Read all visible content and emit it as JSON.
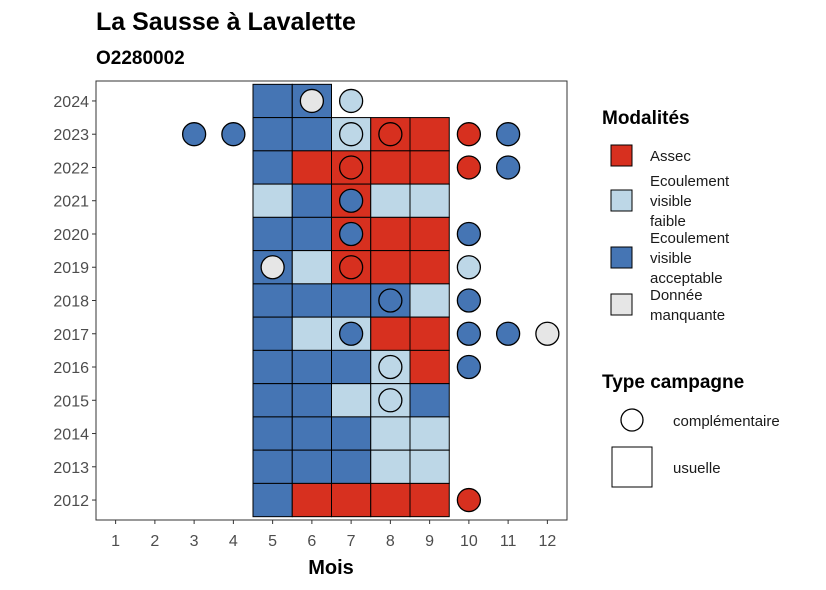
{
  "chart_data": {
    "type": "heatmap",
    "title": "La Sausse à Lavalette",
    "subtitle": "O2280002",
    "xlabel": "Mois",
    "ylabel": "",
    "x_ticks": [
      1,
      2,
      3,
      4,
      5,
      6,
      7,
      8,
      9,
      10,
      11,
      12
    ],
    "y_ticks": [
      2012,
      2013,
      2014,
      2015,
      2016,
      2017,
      2018,
      2019,
      2020,
      2021,
      2022,
      2023,
      2024
    ],
    "xlim": [
      0.5,
      12.5
    ],
    "ylim": [
      2011.4,
      2024.6
    ],
    "grid": false,
    "legend_position": "right",
    "colors": {
      "Assec": "#d7301f",
      "Ecoulement visible faible": "#bdd7e7",
      "Ecoulement visible acceptable": "#4575b4",
      "Donnée manquante": "#e6e6e6"
    },
    "legend_modalites": {
      "title": "Modalités",
      "entries": [
        {
          "key": "Assec",
          "lines": [
            "Assec"
          ]
        },
        {
          "key": "Ecoulement visible faible",
          "lines": [
            "Ecoulement",
            "visible",
            "faible"
          ]
        },
        {
          "key": "Ecoulement visible acceptable",
          "lines": [
            "Ecoulement",
            "visible",
            "acceptable"
          ]
        },
        {
          "key": "Donnée manquante",
          "lines": [
            "Donnée",
            "manquante"
          ]
        }
      ]
    },
    "legend_campagne": {
      "title": "Type campagne",
      "entries": [
        {
          "shape": "circle",
          "label": "complémentaire"
        },
        {
          "shape": "square",
          "label": "usuelle"
        }
      ]
    },
    "usuelle": [
      {
        "year": 2024,
        "month": 5,
        "value": "Ecoulement visible acceptable"
      },
      {
        "year": 2024,
        "month": 6,
        "value": "Ecoulement visible acceptable"
      },
      {
        "year": 2023,
        "month": 5,
        "value": "Ecoulement visible acceptable"
      },
      {
        "year": 2023,
        "month": 6,
        "value": "Ecoulement visible acceptable"
      },
      {
        "year": 2023,
        "month": 7,
        "value": "Ecoulement visible faible"
      },
      {
        "year": 2023,
        "month": 8,
        "value": "Assec"
      },
      {
        "year": 2023,
        "month": 9,
        "value": "Assec"
      },
      {
        "year": 2022,
        "month": 5,
        "value": "Ecoulement visible acceptable"
      },
      {
        "year": 2022,
        "month": 6,
        "value": "Assec"
      },
      {
        "year": 2022,
        "month": 7,
        "value": "Assec"
      },
      {
        "year": 2022,
        "month": 8,
        "value": "Assec"
      },
      {
        "year": 2022,
        "month": 9,
        "value": "Assec"
      },
      {
        "year": 2021,
        "month": 5,
        "value": "Ecoulement visible faible"
      },
      {
        "year": 2021,
        "month": 6,
        "value": "Ecoulement visible acceptable"
      },
      {
        "year": 2021,
        "month": 7,
        "value": "Assec"
      },
      {
        "year": 2021,
        "month": 8,
        "value": "Ecoulement visible faible"
      },
      {
        "year": 2021,
        "month": 9,
        "value": "Ecoulement visible faible"
      },
      {
        "year": 2020,
        "month": 5,
        "value": "Ecoulement visible acceptable"
      },
      {
        "year": 2020,
        "month": 6,
        "value": "Ecoulement visible acceptable"
      },
      {
        "year": 2020,
        "month": 7,
        "value": "Assec"
      },
      {
        "year": 2020,
        "month": 8,
        "value": "Assec"
      },
      {
        "year": 2020,
        "month": 9,
        "value": "Assec"
      },
      {
        "year": 2019,
        "month": 5,
        "value": "Ecoulement visible acceptable"
      },
      {
        "year": 2019,
        "month": 6,
        "value": "Ecoulement visible faible"
      },
      {
        "year": 2019,
        "month": 7,
        "value": "Assec"
      },
      {
        "year": 2019,
        "month": 8,
        "value": "Assec"
      },
      {
        "year": 2019,
        "month": 9,
        "value": "Assec"
      },
      {
        "year": 2018,
        "month": 5,
        "value": "Ecoulement visible acceptable"
      },
      {
        "year": 2018,
        "month": 6,
        "value": "Ecoulement visible acceptable"
      },
      {
        "year": 2018,
        "month": 7,
        "value": "Ecoulement visible acceptable"
      },
      {
        "year": 2018,
        "month": 8,
        "value": "Ecoulement visible acceptable"
      },
      {
        "year": 2018,
        "month": 9,
        "value": "Ecoulement visible faible"
      },
      {
        "year": 2017,
        "month": 5,
        "value": "Ecoulement visible acceptable"
      },
      {
        "year": 2017,
        "month": 6,
        "value": "Ecoulement visible faible"
      },
      {
        "year": 2017,
        "month": 7,
        "value": "Ecoulement visible faible"
      },
      {
        "year": 2017,
        "month": 8,
        "value": "Assec"
      },
      {
        "year": 2017,
        "month": 9,
        "value": "Assec"
      },
      {
        "year": 2016,
        "month": 5,
        "value": "Ecoulement visible acceptable"
      },
      {
        "year": 2016,
        "month": 6,
        "value": "Ecoulement visible acceptable"
      },
      {
        "year": 2016,
        "month": 7,
        "value": "Ecoulement visible acceptable"
      },
      {
        "year": 2016,
        "month": 8,
        "value": "Ecoulement visible faible"
      },
      {
        "year": 2016,
        "month": 9,
        "value": "Assec"
      },
      {
        "year": 2015,
        "month": 5,
        "value": "Ecoulement visible acceptable"
      },
      {
        "year": 2015,
        "month": 6,
        "value": "Ecoulement visible acceptable"
      },
      {
        "year": 2015,
        "month": 7,
        "value": "Ecoulement visible faible"
      },
      {
        "year": 2015,
        "month": 8,
        "value": "Ecoulement visible faible"
      },
      {
        "year": 2015,
        "month": 9,
        "value": "Ecoulement visible acceptable"
      },
      {
        "year": 2014,
        "month": 5,
        "value": "Ecoulement visible acceptable"
      },
      {
        "year": 2014,
        "month": 6,
        "value": "Ecoulement visible acceptable"
      },
      {
        "year": 2014,
        "month": 7,
        "value": "Ecoulement visible acceptable"
      },
      {
        "year": 2014,
        "month": 8,
        "value": "Ecoulement visible faible"
      },
      {
        "year": 2014,
        "month": 9,
        "value": "Ecoulement visible faible"
      },
      {
        "year": 2013,
        "month": 5,
        "value": "Ecoulement visible acceptable"
      },
      {
        "year": 2013,
        "month": 6,
        "value": "Ecoulement visible acceptable"
      },
      {
        "year": 2013,
        "month": 7,
        "value": "Ecoulement visible acceptable"
      },
      {
        "year": 2013,
        "month": 8,
        "value": "Ecoulement visible faible"
      },
      {
        "year": 2013,
        "month": 9,
        "value": "Ecoulement visible faible"
      },
      {
        "year": 2012,
        "month": 5,
        "value": "Ecoulement visible acceptable"
      },
      {
        "year": 2012,
        "month": 6,
        "value": "Assec"
      },
      {
        "year": 2012,
        "month": 7,
        "value": "Assec"
      },
      {
        "year": 2012,
        "month": 8,
        "value": "Assec"
      },
      {
        "year": 2012,
        "month": 9,
        "value": "Assec"
      }
    ],
    "complementaire": [
      {
        "year": 2024,
        "month": 6,
        "value": "Donnée manquante"
      },
      {
        "year": 2024,
        "month": 7,
        "value": "Ecoulement visible faible"
      },
      {
        "year": 2023,
        "month": 3,
        "value": "Ecoulement visible acceptable"
      },
      {
        "year": 2023,
        "month": 4,
        "value": "Ecoulement visible acceptable"
      },
      {
        "year": 2023,
        "month": 7,
        "value": "Ecoulement visible faible"
      },
      {
        "year": 2023,
        "month": 8,
        "value": "Assec"
      },
      {
        "year": 2023,
        "month": 10,
        "value": "Assec"
      },
      {
        "year": 2023,
        "month": 11,
        "value": "Ecoulement visible acceptable"
      },
      {
        "year": 2022,
        "month": 7,
        "value": "Assec"
      },
      {
        "year": 2022,
        "month": 10,
        "value": "Assec"
      },
      {
        "year": 2022,
        "month": 11,
        "value": "Ecoulement visible acceptable"
      },
      {
        "year": 2021,
        "month": 7,
        "value": "Ecoulement visible acceptable"
      },
      {
        "year": 2020,
        "month": 7,
        "value": "Ecoulement visible acceptable"
      },
      {
        "year": 2020,
        "month": 10,
        "value": "Ecoulement visible acceptable"
      },
      {
        "year": 2019,
        "month": 5,
        "value": "Donnée manquante"
      },
      {
        "year": 2019,
        "month": 7,
        "value": "Assec"
      },
      {
        "year": 2019,
        "month": 10,
        "value": "Ecoulement visible faible"
      },
      {
        "year": 2018,
        "month": 8,
        "value": "Ecoulement visible acceptable"
      },
      {
        "year": 2018,
        "month": 10,
        "value": "Ecoulement visible acceptable"
      },
      {
        "year": 2017,
        "month": 7,
        "value": "Ecoulement visible acceptable"
      },
      {
        "year": 2017,
        "month": 10,
        "value": "Ecoulement visible acceptable"
      },
      {
        "year": 2017,
        "month": 11,
        "value": "Ecoulement visible acceptable"
      },
      {
        "year": 2017,
        "month": 12,
        "value": "Donnée manquante"
      },
      {
        "year": 2016,
        "month": 8,
        "value": "Ecoulement visible faible"
      },
      {
        "year": 2016,
        "month": 10,
        "value": "Ecoulement visible acceptable"
      },
      {
        "year": 2015,
        "month": 8,
        "value": "Ecoulement visible faible"
      },
      {
        "year": 2012,
        "month": 10,
        "value": "Assec"
      }
    ]
  }
}
